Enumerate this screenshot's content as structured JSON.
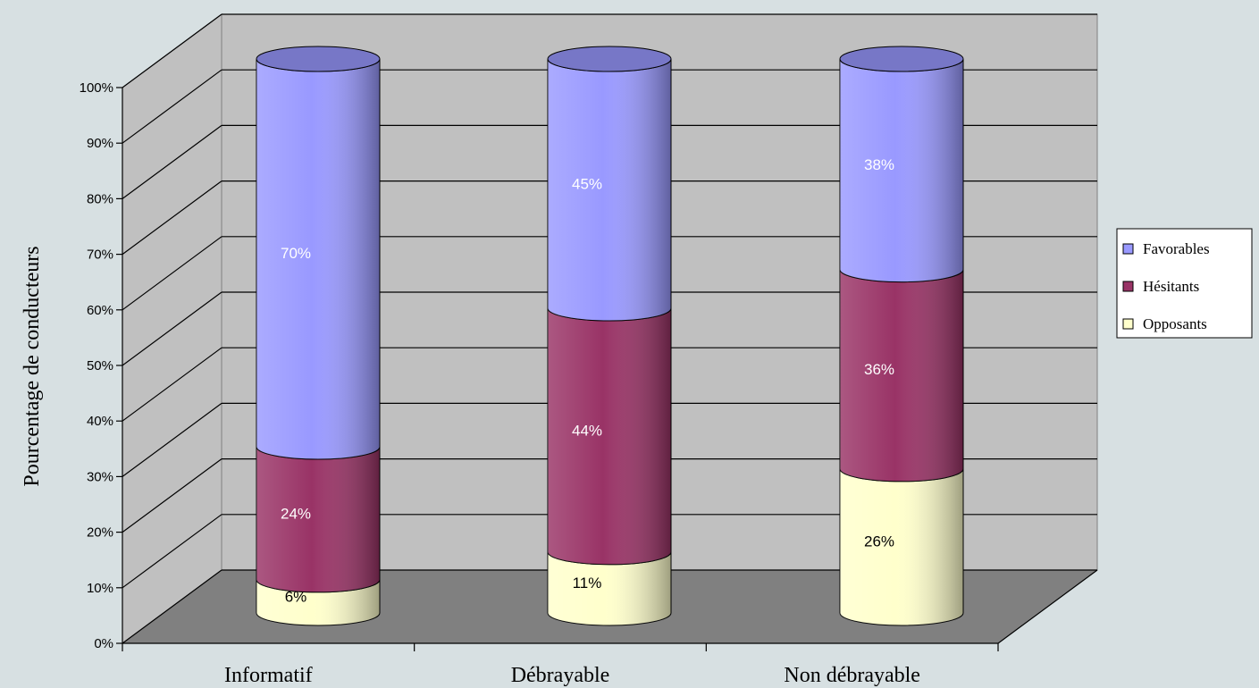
{
  "chart_data": {
    "type": "bar",
    "stacked": true,
    "normalized": true,
    "three_d": true,
    "bar_shape": "cylinder",
    "categories": [
      "Informatif",
      "Débrayable",
      "Non débrayable"
    ],
    "series": [
      {
        "name": "Opposants",
        "values": [
          6,
          11,
          26
        ],
        "labels": [
          "6%",
          "11%",
          "26%"
        ],
        "color": "#ffffcc",
        "label_color": "#000000"
      },
      {
        "name": "Hésitants",
        "values": [
          24,
          44,
          36
        ],
        "labels": [
          "24%",
          "44%",
          "36%"
        ],
        "color": "#993366",
        "label_color": "#ffffff"
      },
      {
        "name": "Favorables",
        "values": [
          70,
          45,
          38
        ],
        "labels": [
          "70%",
          "45%",
          "38%"
        ],
        "color": "#9999ff",
        "label_color": "#ffffff"
      }
    ],
    "yticks": [
      "0%",
      "10%",
      "20%",
      "30%",
      "40%",
      "50%",
      "60%",
      "70%",
      "80%",
      "90%",
      "100%"
    ],
    "ylim": [
      0,
      100
    ],
    "ylabel": "Pourcentage de conducteurs",
    "xlabel": "",
    "title": "",
    "grid": true,
    "legend": {
      "placement": "right",
      "order": [
        "Favorables",
        "Hésitants",
        "Opposants"
      ]
    },
    "wall_color": "#c0c0c0",
    "floor_color": "#808080"
  }
}
